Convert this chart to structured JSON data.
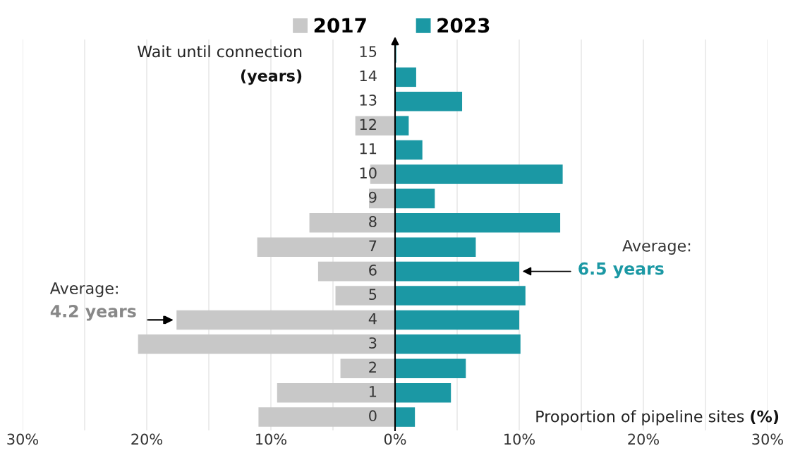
{
  "chart_data": {
    "type": "bar",
    "orientation": "horizontal",
    "stacked": true,
    "categories": [
      "15",
      "14",
      "13",
      "12",
      "11",
      "10",
      "9",
      "8",
      "7",
      "6",
      "5",
      "4",
      "3",
      "2",
      "1",
      "0"
    ],
    "series": [
      {
        "name": "2017",
        "color": "#c8c8c8",
        "values": [
          0,
          0,
          0,
          -3.2,
          0,
          -2.0,
          -2.1,
          -6.9,
          -11.1,
          -6.2,
          -4.8,
          -17.6,
          -20.7,
          -4.4,
          -9.5,
          -11.0
        ]
      },
      {
        "name": "2023",
        "color": "#1b98a4",
        "values": [
          0.1,
          1.7,
          5.4,
          1.1,
          2.2,
          13.5,
          3.2,
          13.3,
          6.5,
          10.0,
          10.5,
          10.0,
          10.1,
          5.7,
          4.5,
          1.6
        ]
      }
    ],
    "xlim": [
      -30,
      30
    ],
    "xticks": [
      {
        "value": -30,
        "label": "30%"
      },
      {
        "value": -25,
        "label": null
      },
      {
        "value": -20,
        "label": "20%"
      },
      {
        "value": -15,
        "label": null
      },
      {
        "value": -10,
        "label": "10%"
      },
      {
        "value": -5,
        "label": null
      },
      {
        "value": 0,
        "label": "0%"
      },
      {
        "value": 5,
        "label": null
      },
      {
        "value": 10,
        "label": "10%"
      },
      {
        "value": 15,
        "label": null
      },
      {
        "value": 20,
        "label": "20%"
      },
      {
        "value": 25,
        "label": null
      },
      {
        "value": 30,
        "label": "30%"
      }
    ],
    "xlabel": "Proportion of pipeline sites (%)",
    "ylabel": "Wait until connection (years)",
    "annotations": [
      {
        "text": "Average:\n4.2 years",
        "x": -17.7,
        "y": "4"
      },
      {
        "text": "Average:\n6.5 years",
        "x": 10.1,
        "y": "6"
      }
    ],
    "grid": "x",
    "legend": "top"
  }
}
